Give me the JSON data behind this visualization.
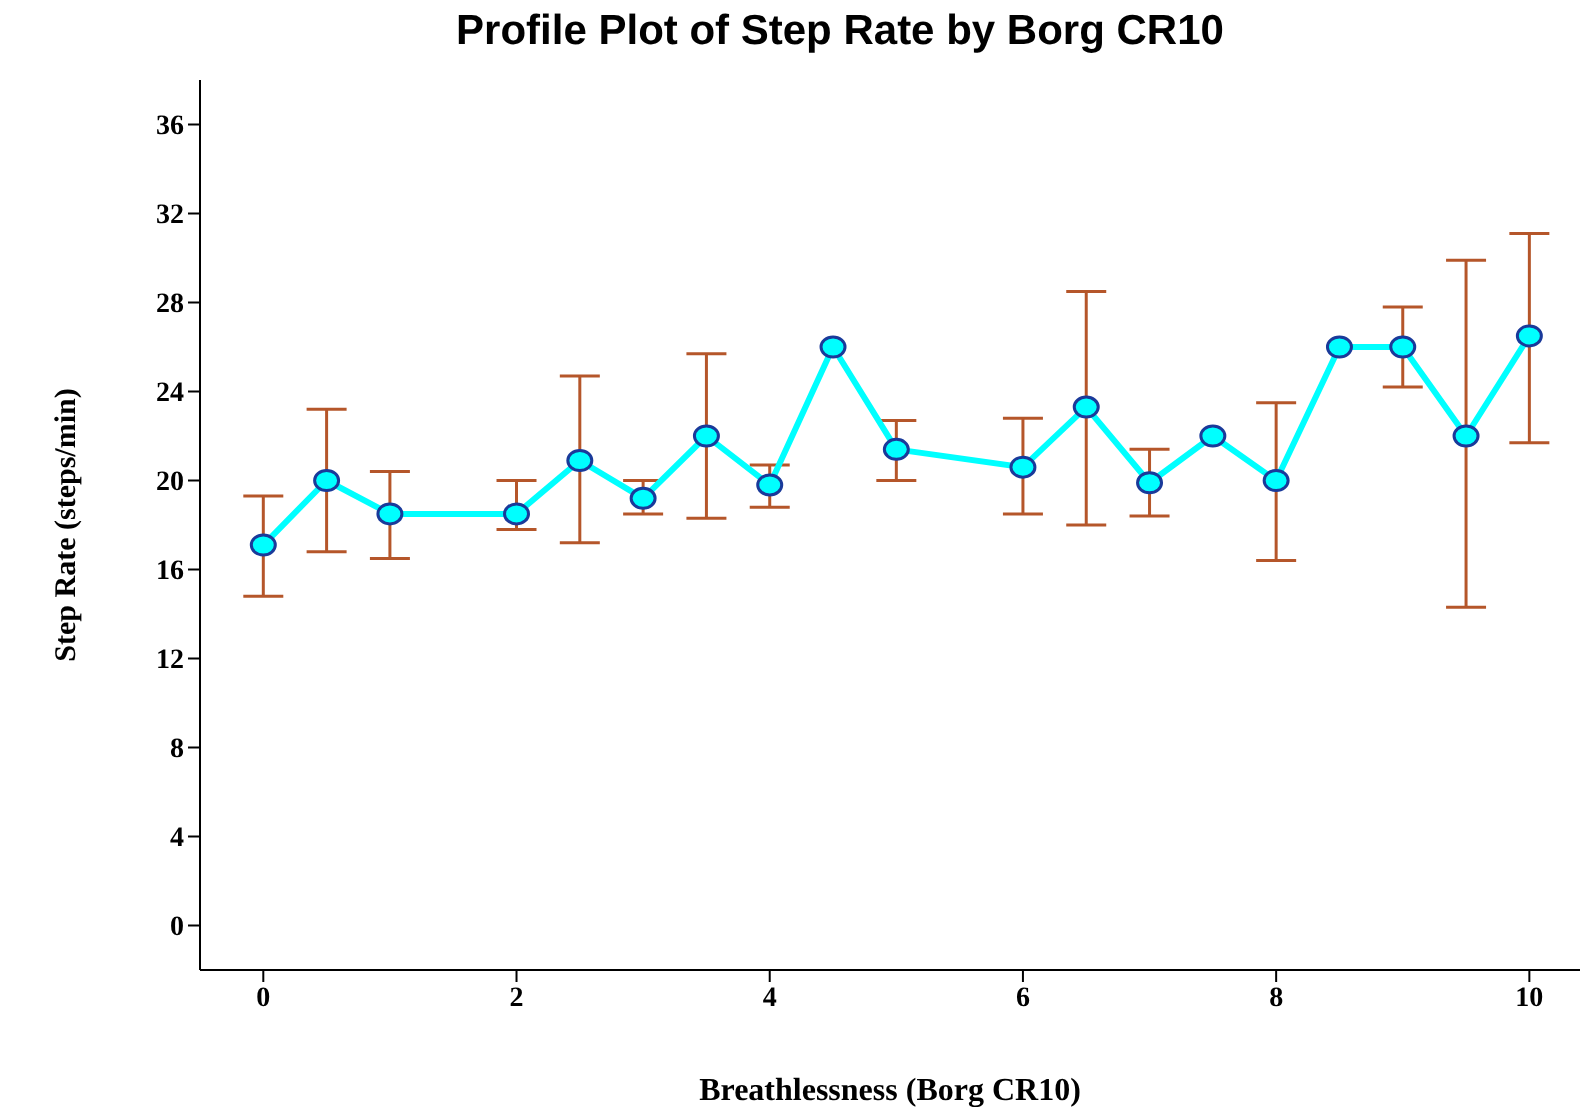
{
  "chart_data": {
    "type": "line",
    "title": "Profile Plot of Step Rate by Borg CR10",
    "xlabel": "Breathlessness (Borg CR10)",
    "ylabel": "Step Rate (steps/min)",
    "x": [
      0,
      0.5,
      1,
      2,
      2.5,
      3,
      3.5,
      4,
      4.5,
      5,
      6,
      6.5,
      7,
      7.5,
      8,
      8.5,
      9,
      9.5,
      10
    ],
    "series": [
      {
        "color": "#00ffff",
        "values": [
          17.1,
          20.0,
          18.5,
          18.5,
          20.9,
          19.2,
          22.0,
          19.8,
          26.0,
          21.4,
          20.6,
          23.3,
          19.9,
          22.0,
          20.0,
          26.0,
          26.0,
          22.0,
          26.5
        ],
        "errors": [
          [
            14.8,
            19.3
          ],
          [
            16.8,
            23.2
          ],
          [
            16.5,
            20.4
          ],
          [
            17.8,
            20.0
          ],
          [
            17.2,
            24.7
          ],
          [
            18.5,
            20.0
          ],
          [
            18.3,
            25.7
          ],
          [
            18.8,
            20.7
          ],
          null,
          [
            20.0,
            22.7
          ],
          [
            18.5,
            22.8
          ],
          [
            18.0,
            28.5
          ],
          [
            18.4,
            21.4
          ],
          null,
          [
            16.4,
            23.5
          ],
          null,
          [
            24.2,
            27.8
          ],
          [
            14.3,
            29.9
          ],
          [
            21.7,
            31.1
          ]
        ]
      }
    ],
    "xlim": [
      -0.5,
      10.4
    ],
    "xticks": [
      0,
      2,
      4,
      6,
      8,
      10
    ],
    "ylim": [
      -2,
      38
    ],
    "yticks": [
      0,
      4,
      8,
      12,
      16,
      20,
      24,
      28,
      32,
      36
    ],
    "grid": false,
    "legend": false,
    "marker": "circle",
    "line_style": "solid"
  }
}
